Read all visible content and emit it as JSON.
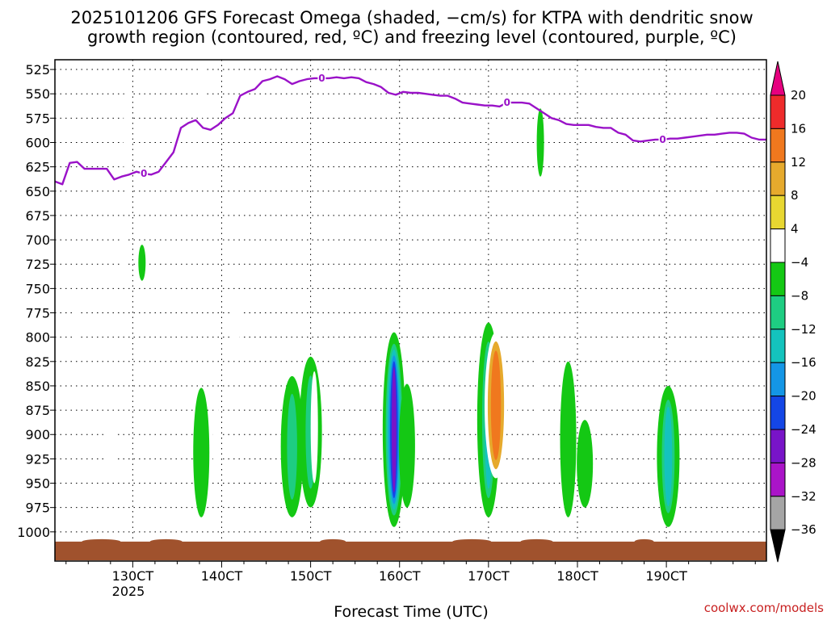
{
  "title": {
    "line1": "2025101206 GFS Forecast Omega (shaded, −cm/s) for KTPA with dendritic snow",
    "line2": "growth region (contoured, red, ºC) and freezing level (contoured, purple, ºC)"
  },
  "credit": "coolwx.com/models",
  "chart_data": {
    "type": "time-height cross section",
    "title": "2025101206 GFS Forecast Omega (shaded, −cm/s) for KTPA with dendritic snow growth region (contoured, red, ºC) and freezing level (contoured, purple, ºC)",
    "xlabel": "Forecast Time (UTC)",
    "ylabel": "",
    "xlim_hours": [
      0,
      384
    ],
    "ylim_hpa": [
      1030,
      515
    ],
    "grid": true,
    "x_ticks": [
      {
        "label": "130CT",
        "hour": 42
      },
      {
        "label": "140CT",
        "hour": 90
      },
      {
        "label": "150CT",
        "hour": 138
      },
      {
        "label": "160CT",
        "hour": 186
      },
      {
        "label": "170CT",
        "hour": 234
      },
      {
        "label": "180CT",
        "hour": 282
      },
      {
        "label": "190CT",
        "hour": 330
      }
    ],
    "year_label": "2025",
    "y_ticks": [
      525,
      550,
      575,
      600,
      625,
      650,
      675,
      700,
      725,
      750,
      775,
      800,
      825,
      850,
      875,
      900,
      925,
      950,
      975,
      1000
    ],
    "colorbar": {
      "labels": [
        "20",
        "16",
        "12",
        "8",
        "4",
        "−4",
        "−8",
        "−12",
        "−16",
        "−20",
        "−24",
        "−28",
        "−32",
        "−36"
      ],
      "colors": [
        "#e6007f",
        "#ee2b2b",
        "#f0781e",
        "#e6aa2d",
        "#e8d731",
        "#ffffff",
        "#14c814",
        "#1ecd82",
        "#14c3bd",
        "#1496e6",
        "#1446e6",
        "#7814c8",
        "#aa14c8",
        "#a5a5a5",
        "#000000"
      ]
    },
    "freezing_level": {
      "label": "0",
      "color": "#9a12c8",
      "hours": [
        0,
        4,
        8,
        12,
        16,
        20,
        24,
        28,
        32,
        36,
        40,
        44,
        48,
        52,
        56,
        60,
        64,
        68,
        72,
        76,
        80,
        84,
        88,
        92,
        96,
        100,
        104,
        108,
        112,
        116,
        120,
        124,
        128,
        132,
        136,
        140,
        144,
        148,
        152,
        156,
        160,
        164,
        168,
        172,
        176,
        180,
        184,
        188,
        192,
        196,
        200,
        204,
        208,
        212,
        216,
        220,
        224,
        228,
        232,
        236,
        240,
        244,
        248,
        252,
        256,
        260,
        264,
        268,
        272,
        276,
        280,
        284,
        288,
        292,
        296,
        300,
        304,
        308,
        312,
        316,
        320,
        324,
        328,
        332,
        336,
        340,
        344,
        348,
        352,
        356,
        360,
        364,
        368,
        372,
        376,
        380,
        384
      ],
      "pressure": [
        640,
        643,
        621,
        620,
        627,
        627,
        627,
        627,
        638,
        635,
        633,
        630,
        632,
        633,
        630,
        620,
        610,
        585,
        580,
        577,
        585,
        587,
        582,
        575,
        570,
        552,
        548,
        545,
        537,
        535,
        532,
        535,
        540,
        537,
        535,
        534,
        534,
        534,
        533,
        534,
        533,
        534,
        538,
        540,
        543,
        549,
        551,
        548,
        549,
        549,
        550,
        551,
        552,
        552,
        555,
        559,
        560,
        561,
        562,
        562,
        563,
        559,
        559,
        559,
        560,
        565,
        570,
        575,
        577,
        581,
        582,
        582,
        582,
        584,
        585,
        585,
        590,
        592,
        598,
        599,
        598,
        597,
        597,
        596,
        596,
        595,
        594,
        593,
        592,
        592,
        591,
        590,
        590,
        591,
        595,
        597,
        597
      ]
    },
    "omega_features": [
      {
        "hour": 12,
        "p_top": 765,
        "p_bot": 808,
        "level": 4
      },
      {
        "hour": 30,
        "p_top": 876,
        "p_bot": 951,
        "level": 4
      },
      {
        "hour": 37,
        "p_top": 685,
        "p_bot": 735,
        "level": 4
      },
      {
        "hour": 39,
        "p_top": 520,
        "p_bot": 670,
        "level": 4
      },
      {
        "hour": 47,
        "p_top": 705,
        "p_bot": 742,
        "level": -4
      },
      {
        "hour": 80,
        "p_top": 520,
        "p_bot": 575,
        "level": 4
      },
      {
        "hour": 79,
        "p_top": 852,
        "p_bot": 985,
        "level": -8
      },
      {
        "hour": 87,
        "p_top": 862,
        "p_bot": 945,
        "level": 4
      },
      {
        "hour": 98,
        "p_top": 745,
        "p_bot": 820,
        "level": 4
      },
      {
        "hour": 128,
        "p_top": 840,
        "p_bot": 985,
        "level": -12
      },
      {
        "hour": 138,
        "p_top": 820,
        "p_bot": 975,
        "level": -12
      },
      {
        "hour": 140,
        "p_top": 835,
        "p_bot": 950,
        "level": 4
      },
      {
        "hour": 183,
        "p_top": 795,
        "p_bot": 995,
        "level": -28
      },
      {
        "hour": 190,
        "p_top": 848,
        "p_bot": 975,
        "level": -8
      },
      {
        "hour": 234,
        "p_top": 785,
        "p_bot": 985,
        "level": -16
      },
      {
        "hour": 238,
        "p_top": 795,
        "p_bot": 945,
        "level": 12
      },
      {
        "hour": 262,
        "p_top": 565,
        "p_bot": 635,
        "level": -4
      },
      {
        "hour": 261,
        "p_top": 815,
        "p_bot": 890,
        "level": 4
      },
      {
        "hour": 277,
        "p_top": 825,
        "p_bot": 985,
        "level": -8
      },
      {
        "hour": 286,
        "p_top": 885,
        "p_bot": 975,
        "level": -8
      },
      {
        "hour": 284,
        "p_top": 520,
        "p_bot": 548,
        "level": 4
      },
      {
        "hour": 331,
        "p_top": 850,
        "p_bot": 995,
        "level": -16
      },
      {
        "hour": 354,
        "p_top": 522,
        "p_bot": 670,
        "level": 4
      }
    ],
    "surface": {
      "p_top": 1010,
      "color": "#a0522d"
    }
  }
}
